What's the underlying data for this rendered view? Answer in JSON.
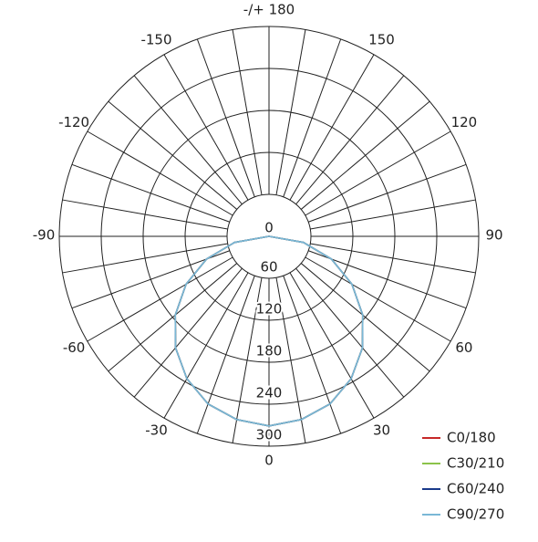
{
  "chart_data": {
    "type": "polar",
    "x": [
      -90,
      -80,
      -70,
      -60,
      -50,
      -40,
      -30,
      -20,
      -10,
      0,
      10,
      20,
      30,
      40,
      50,
      60,
      70,
      80,
      90
    ],
    "series": [
      {
        "name": "C0/180",
        "color": "#c62828",
        "values": [
          0,
          50,
          95,
          137,
          175,
          208,
          235,
          255,
          266,
          271,
          266,
          255,
          235,
          208,
          175,
          137,
          95,
          50,
          0
        ]
      },
      {
        "name": "C30/210",
        "color": "#8bc34a",
        "values": [
          0,
          50,
          95,
          137,
          175,
          208,
          235,
          255,
          266,
          271,
          266,
          255,
          235,
          208,
          175,
          137,
          95,
          50,
          0
        ]
      },
      {
        "name": "C60/240",
        "color": "#1a3a8a",
        "values": [
          0,
          50,
          95,
          137,
          175,
          208,
          235,
          255,
          266,
          271,
          266,
          255,
          235,
          208,
          175,
          137,
          95,
          50,
          0
        ]
      },
      {
        "name": "C90/270",
        "color": "#7ab8d6",
        "values": [
          0,
          50,
          95,
          137,
          175,
          208,
          235,
          255,
          266,
          271,
          266,
          255,
          235,
          208,
          175,
          137,
          95,
          50,
          0
        ]
      }
    ],
    "rlim": [
      0,
      300
    ],
    "rticks": [
      0,
      60,
      120,
      180,
      240,
      300
    ],
    "angle_ticks": [
      0,
      30,
      60,
      90,
      120,
      150,
      {
        "value": 180,
        "label": "-/+ 180"
      },
      -150,
      -120,
      -90,
      -60,
      -30
    ],
    "angle_grid_step": 10
  }
}
